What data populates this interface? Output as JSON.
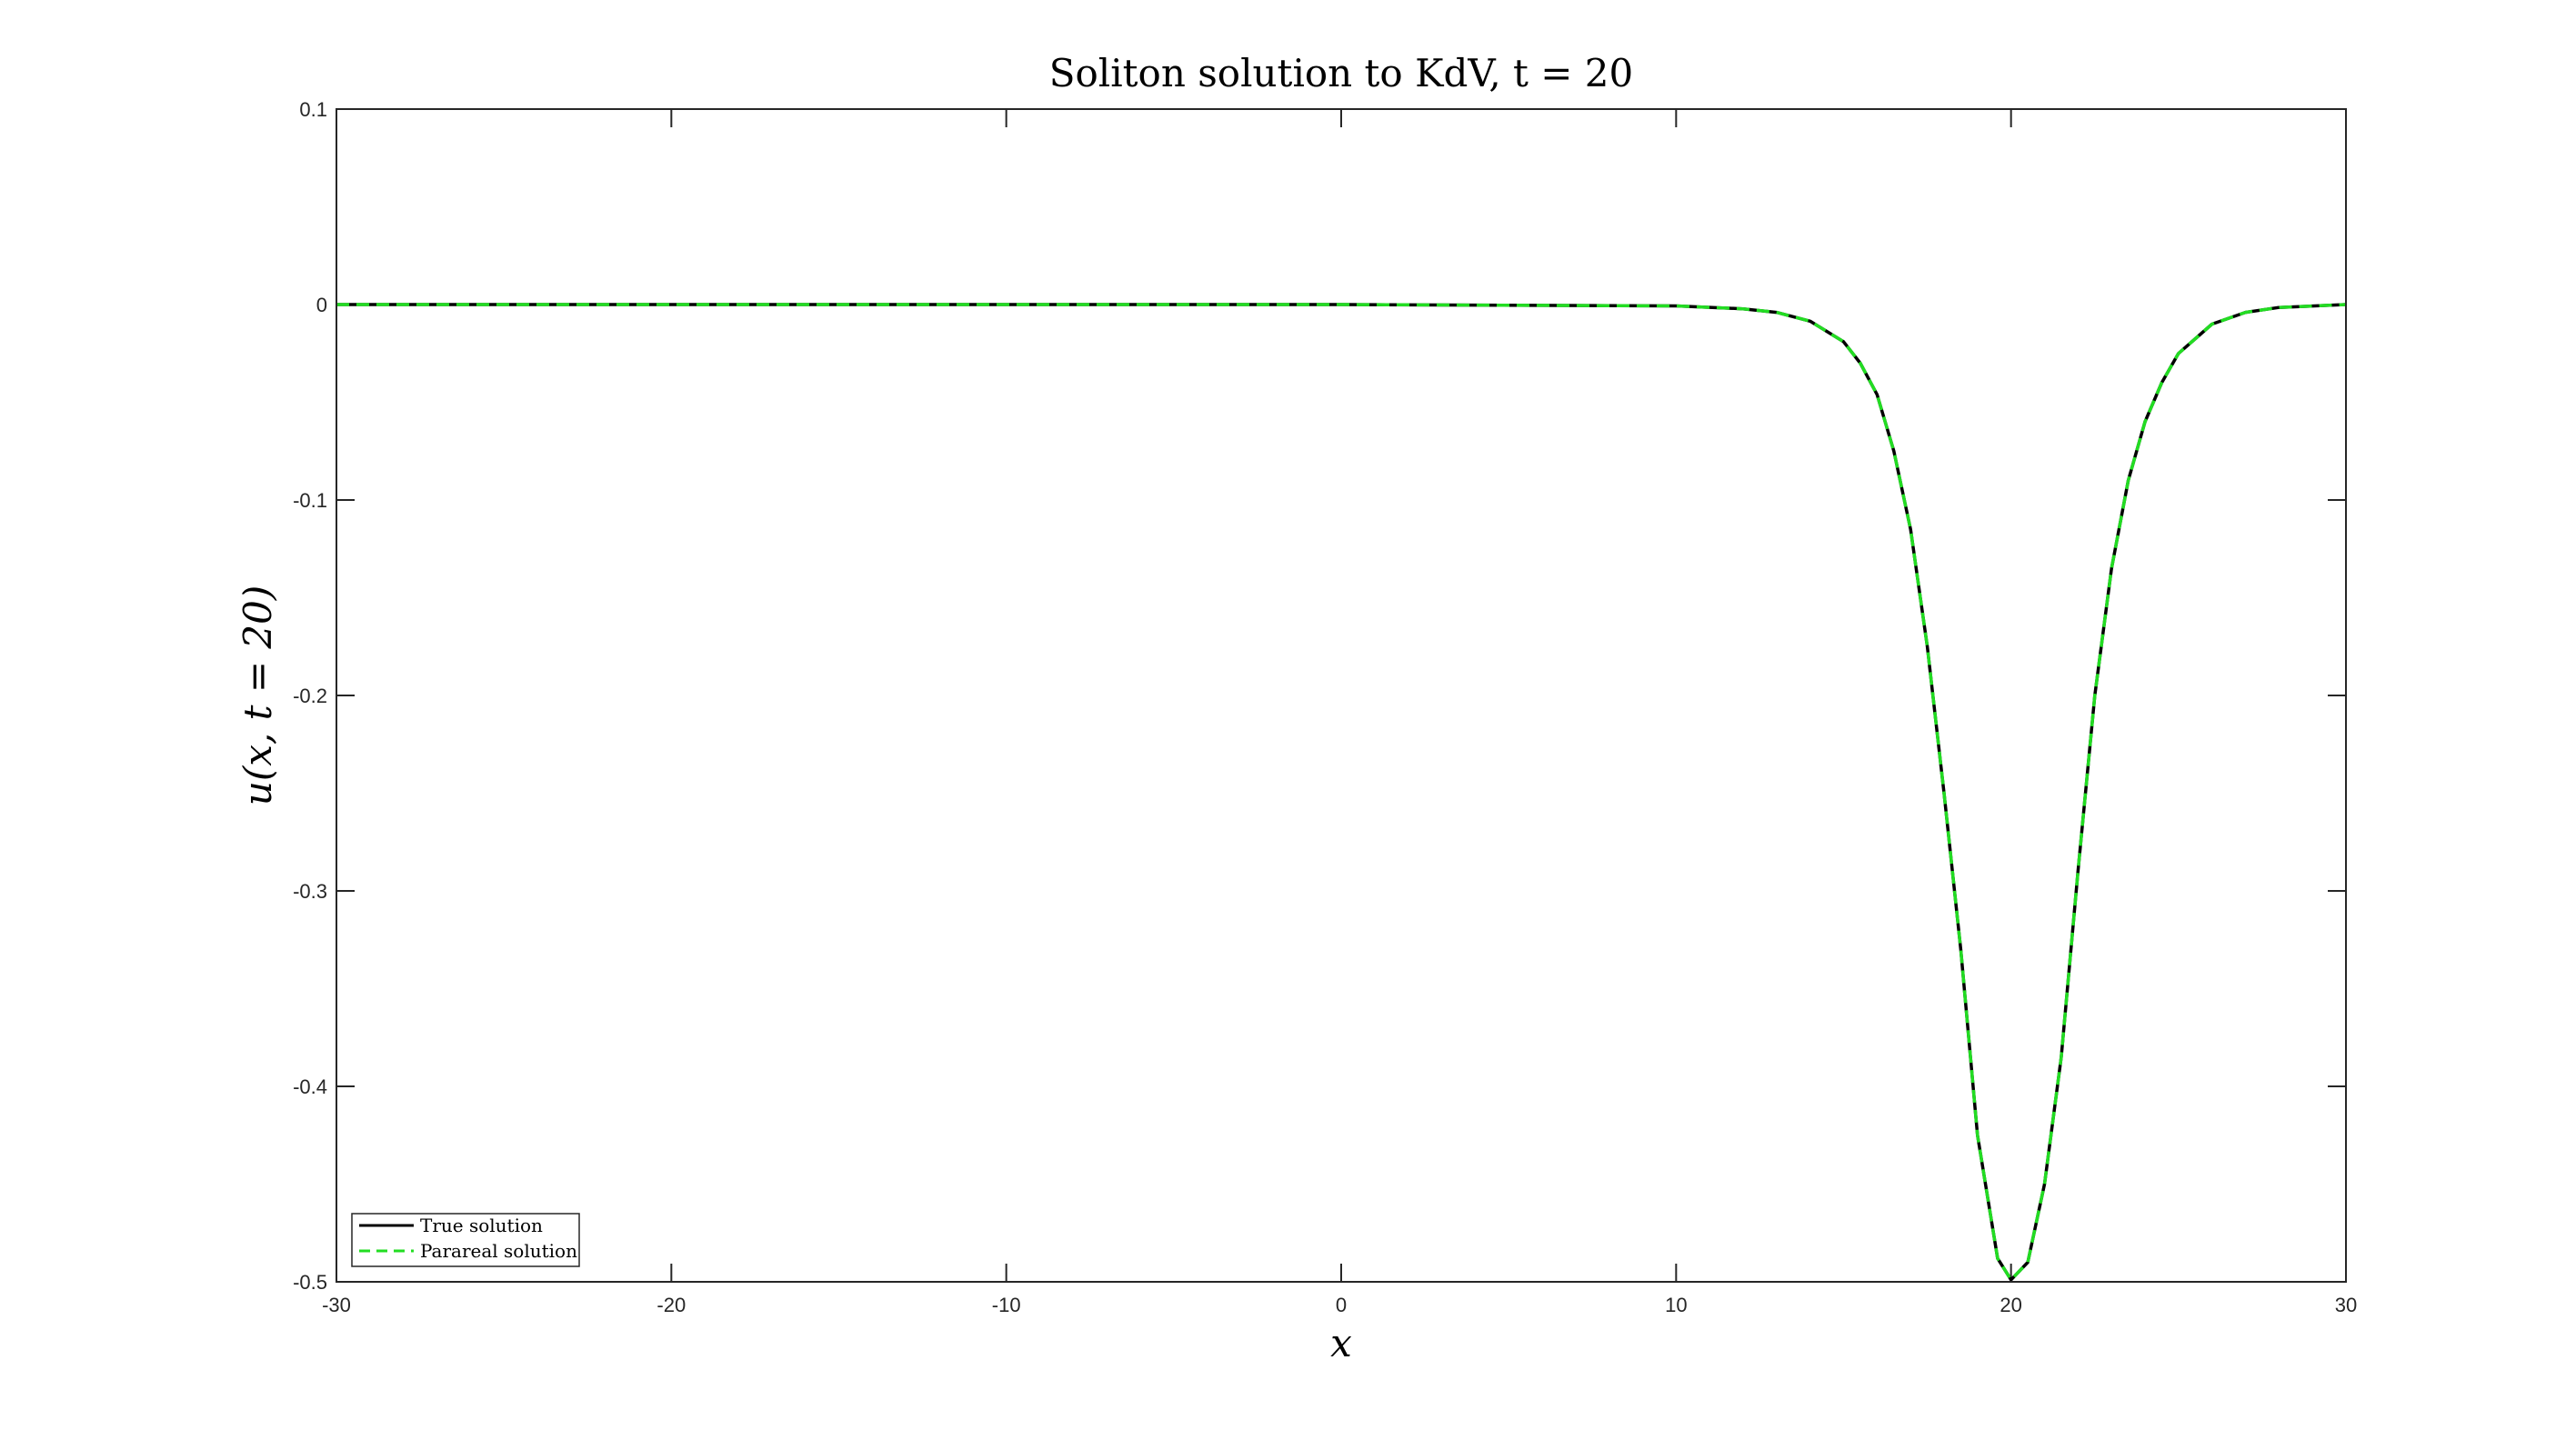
{
  "chart_data": {
    "type": "line",
    "title": "Soliton solution to KdV, t = 20",
    "xlabel": "x",
    "ylabel": "u(x, t = 20)",
    "xlim": [
      -30,
      30
    ],
    "ylim": [
      -0.5,
      0.1
    ],
    "xticks": [
      -30,
      -20,
      -10,
      0,
      10,
      20,
      30
    ],
    "yticks": [
      0.1,
      0,
      -0.1,
      -0.2,
      -0.3,
      -0.4,
      -0.5
    ],
    "xtick_labels": [
      "-30",
      "-20",
      "-10",
      "0",
      "10",
      "20",
      "30"
    ],
    "ytick_labels": [
      "0.1",
      "0",
      "-0.1",
      "-0.2",
      "-0.3",
      "-0.4",
      "-0.5"
    ],
    "grid": false,
    "legend_position": "bottom-left",
    "series": [
      {
        "name": "True solution",
        "color": "#000000",
        "style": "solid",
        "x": [
          -30,
          -20,
          -10,
          0,
          10,
          12,
          13,
          14,
          15,
          15.5,
          16,
          16.5,
          17,
          17.5,
          18,
          18.5,
          19,
          19.6,
          20,
          20.5,
          21,
          21.5,
          22,
          22.5,
          23,
          23.5,
          24,
          24.5,
          25,
          26,
          27,
          28,
          30
        ],
        "y": [
          0,
          0,
          0,
          0,
          -0.0007,
          -0.0022,
          -0.004,
          -0.0085,
          -0.019,
          -0.03,
          -0.046,
          -0.075,
          -0.115,
          -0.175,
          -0.25,
          -0.33,
          -0.425,
          -0.488,
          -0.499,
          -0.49,
          -0.45,
          -0.385,
          -0.29,
          -0.2,
          -0.135,
          -0.09,
          -0.06,
          -0.04,
          -0.025,
          -0.01,
          -0.004,
          -0.0015,
          0
        ]
      },
      {
        "name": "Parareal solution",
        "color": "#22dd22",
        "style": "dashed",
        "x": [
          -30,
          -20,
          -10,
          0,
          10,
          12,
          13,
          14,
          15,
          15.5,
          16,
          16.5,
          17,
          17.5,
          18,
          18.5,
          19,
          19.6,
          20,
          20.5,
          21,
          21.5,
          22,
          22.5,
          23,
          23.5,
          24,
          24.5,
          25,
          26,
          27,
          28,
          30
        ],
        "y": [
          0,
          0,
          0,
          0,
          -0.0007,
          -0.0022,
          -0.004,
          -0.0085,
          -0.019,
          -0.03,
          -0.046,
          -0.075,
          -0.115,
          -0.175,
          -0.25,
          -0.33,
          -0.425,
          -0.488,
          -0.499,
          -0.49,
          -0.45,
          -0.385,
          -0.29,
          -0.2,
          -0.135,
          -0.09,
          -0.06,
          -0.04,
          -0.025,
          -0.01,
          -0.004,
          -0.0015,
          0
        ]
      }
    ]
  }
}
